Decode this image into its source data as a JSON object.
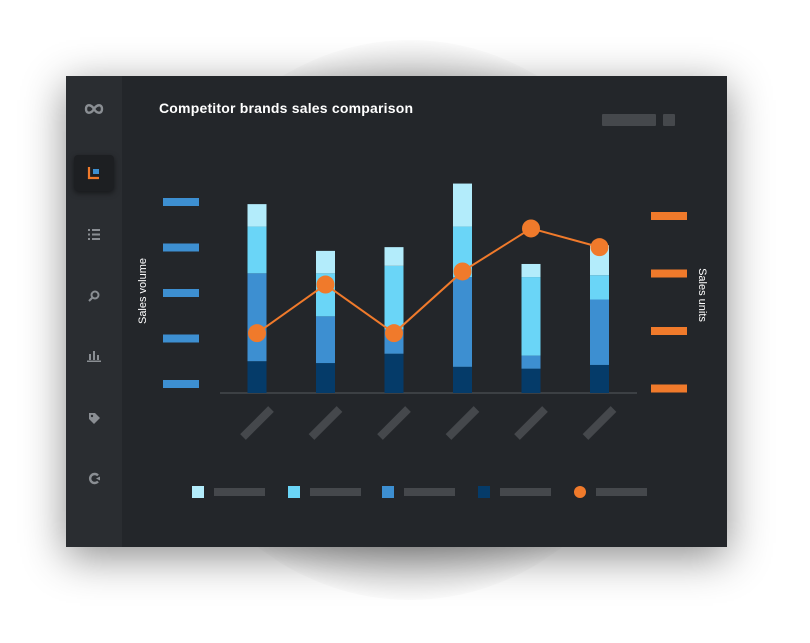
{
  "app": {
    "title": "Competitor brands sales comparison"
  },
  "sidebar": {
    "items": [
      {
        "name": "logo-icon",
        "icon": "infinity"
      },
      {
        "name": "chart-report-icon",
        "icon": "chart-corner",
        "active": true
      },
      {
        "name": "list-icon",
        "icon": "list"
      },
      {
        "name": "search-icon",
        "icon": "magnifier"
      },
      {
        "name": "bar-chart-icon",
        "icon": "bars"
      },
      {
        "name": "tag-icon",
        "icon": "tag"
      },
      {
        "name": "refresh-icon",
        "icon": "circular-arrow"
      }
    ]
  },
  "colors": {
    "window_bg": "#23262a",
    "sidebar_bg": "#2a2d31",
    "accent": "#f07a2b",
    "placeholder": "#45484c",
    "series": [
      "#b3ecfb",
      "#6ad5f7",
      "#3d8fd1",
      "#053b69"
    ],
    "line": "#f07a2b"
  },
  "chart_data": {
    "type": "bar",
    "title": "Competitor brands sales comparison",
    "ylabel": "Sales volume",
    "y2label": "Sales units",
    "stacked": true,
    "categories": [
      "",
      "",
      "",
      "",
      "",
      ""
    ],
    "ylim": [
      0,
      100
    ],
    "y2lim": [
      0,
      100
    ],
    "series": [
      {
        "values": [
          17,
          16,
          21,
          14,
          13,
          15
        ],
        "color": "#053b69"
      },
      {
        "values": [
          47,
          25,
          13,
          48,
          7,
          35
        ],
        "color": "#3d8fd1"
      },
      {
        "values": [
          25,
          23,
          34,
          27,
          42,
          13
        ],
        "color": "#6ad5f7"
      },
      {
        "values": [
          12,
          12,
          10,
          23,
          7,
          16
        ],
        "color": "#b3ecfb"
      }
    ],
    "line": {
      "type": "line",
      "axis": "y2",
      "values": [
        32,
        58,
        32,
        65,
        88,
        78
      ],
      "color": "#f07a2b"
    },
    "grid": false,
    "legend_position": "bottom",
    "left_axis_tick_count": 5,
    "right_axis_tick_count": 4
  }
}
